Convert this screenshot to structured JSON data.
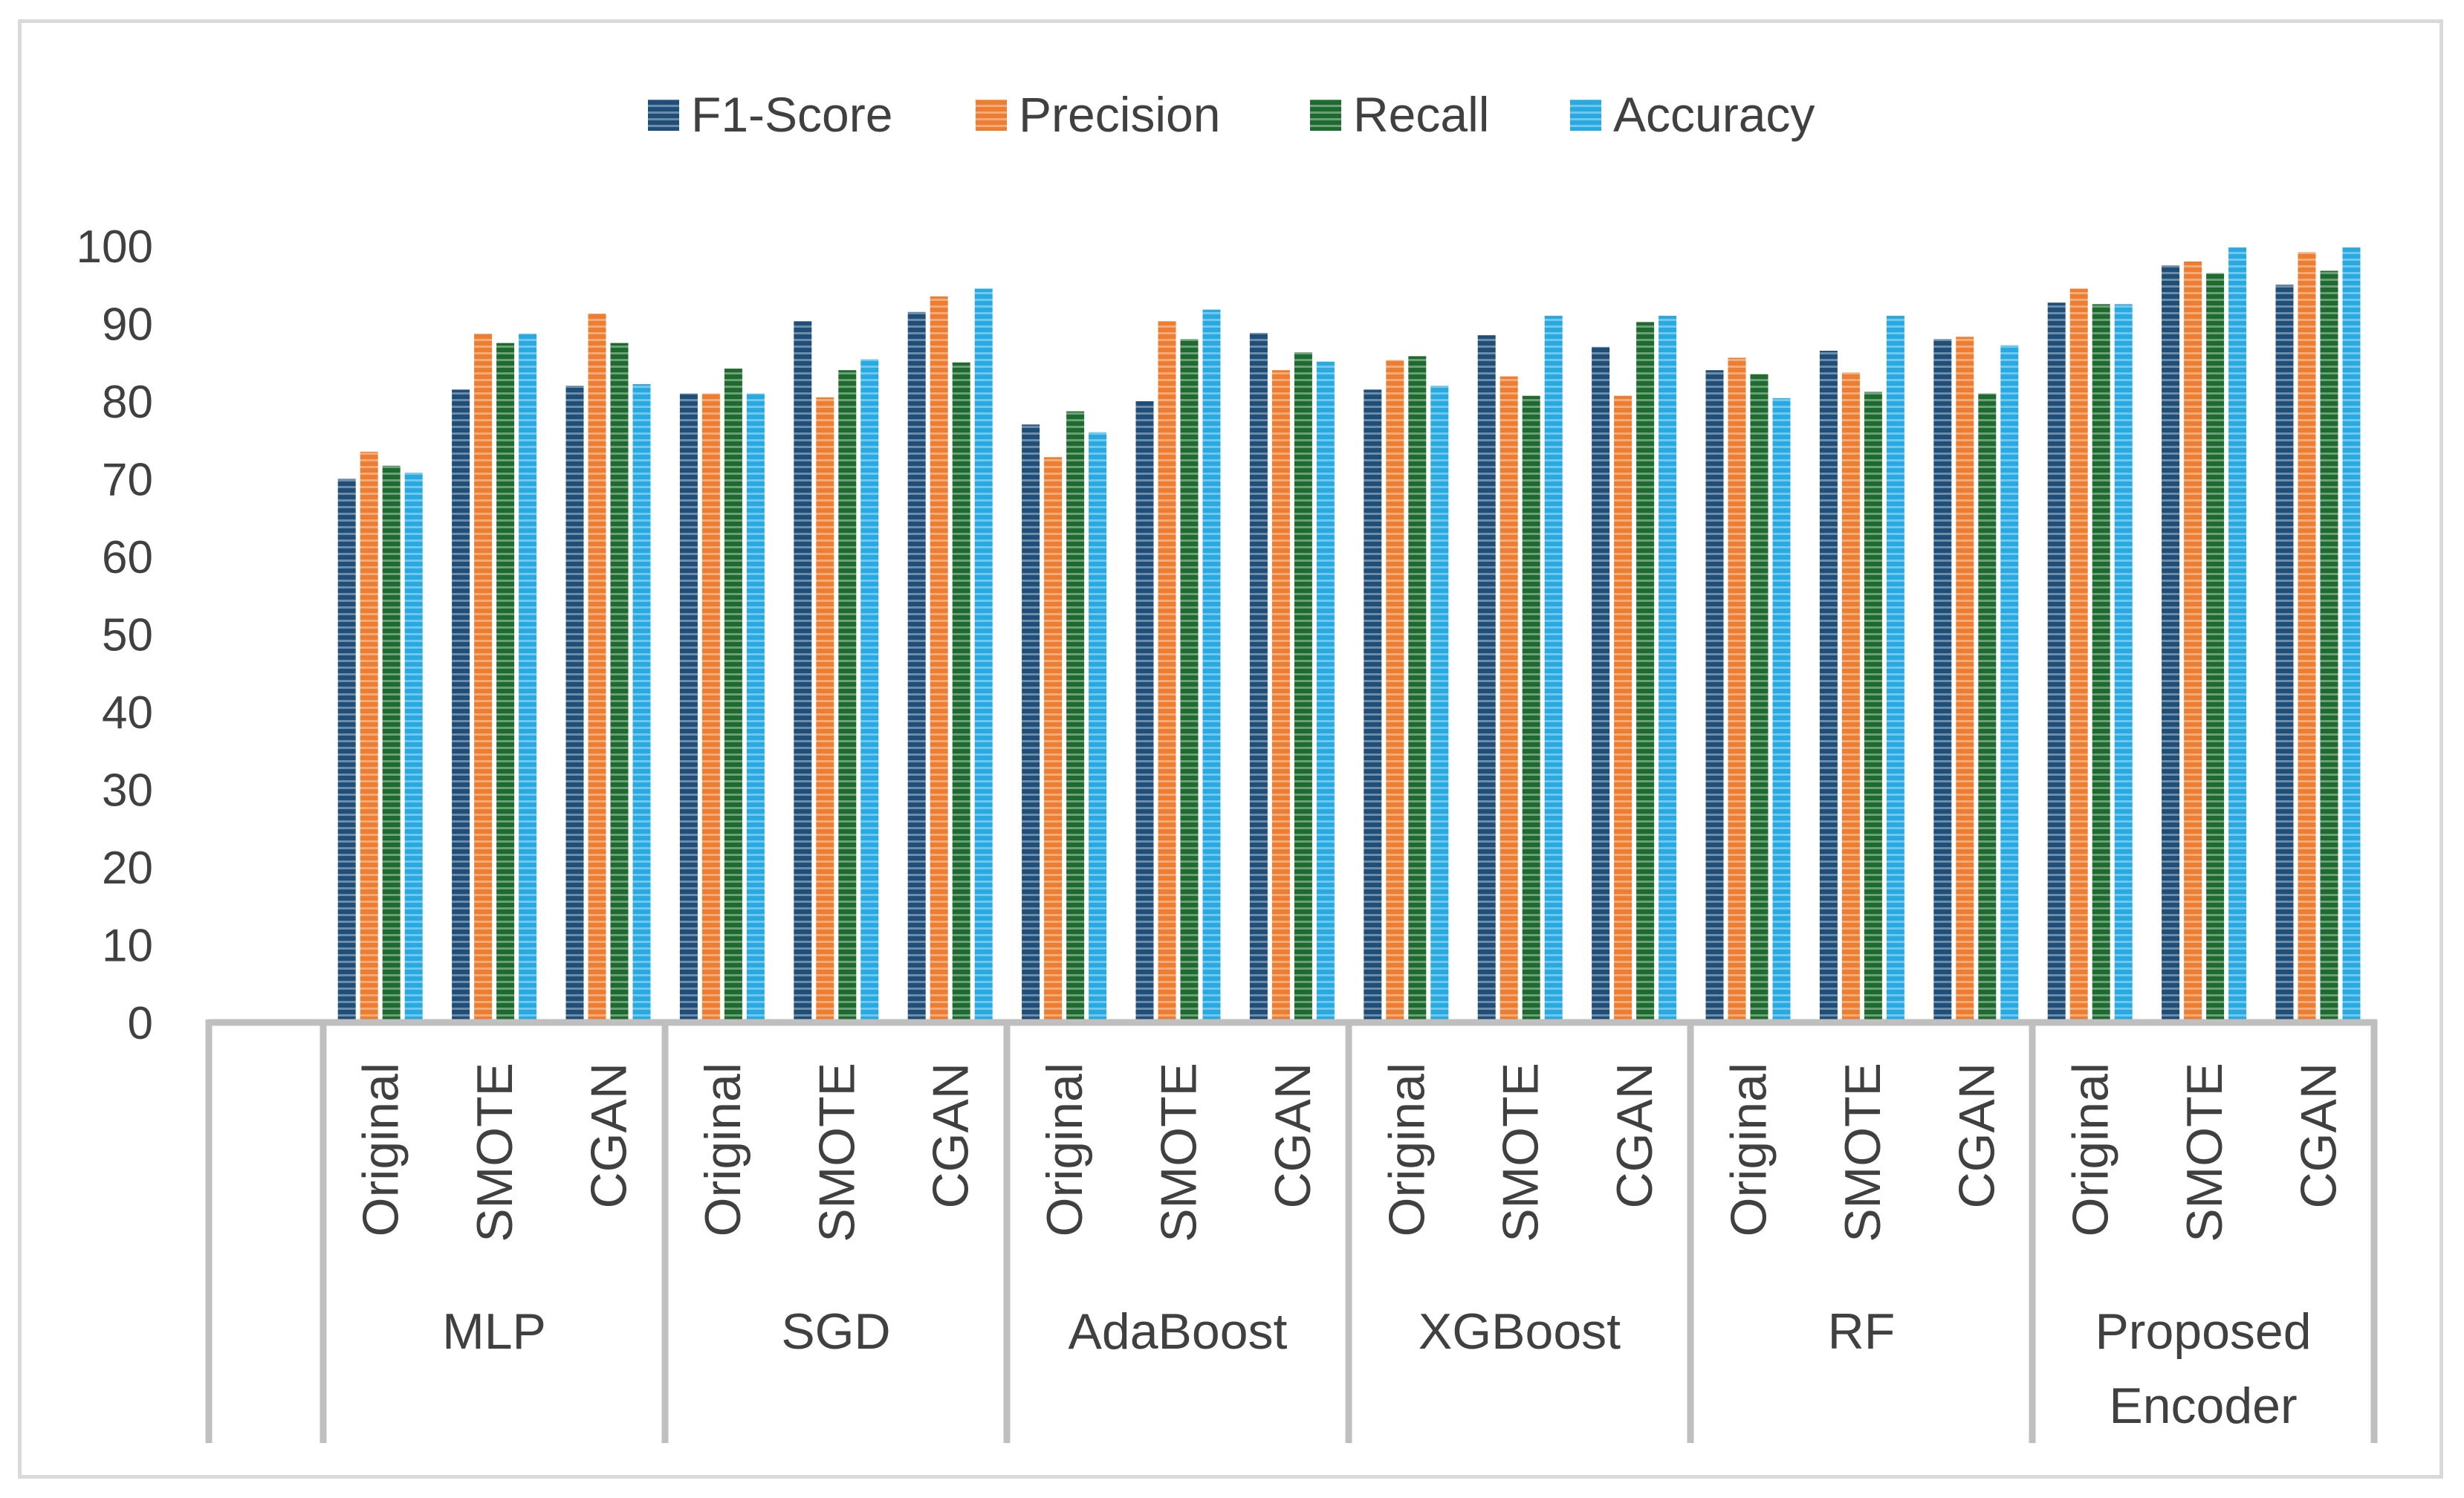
{
  "chart_data": {
    "type": "bar",
    "title": "",
    "xlabel": "",
    "ylabel": "",
    "ylim": [
      0,
      100
    ],
    "yticks": [
      0,
      10,
      20,
      30,
      40,
      50,
      60,
      70,
      80,
      90,
      100
    ],
    "grid": false,
    "legend_position": "top",
    "groups": [
      {
        "name": "MLP",
        "lines": [
          "MLP"
        ]
      },
      {
        "name": "SGD",
        "lines": [
          "SGD"
        ]
      },
      {
        "name": "AdaBoost",
        "lines": [
          "AdaBoost"
        ]
      },
      {
        "name": "XGBoost",
        "lines": [
          "XGBoost"
        ]
      },
      {
        "name": "RF",
        "lines": [
          "RF"
        ]
      },
      {
        "name": "Proposed Encoder",
        "lines": [
          "Proposed",
          "Encoder"
        ]
      }
    ],
    "subcategories": [
      "Original",
      "SMOTE",
      "CGAN"
    ],
    "categories": [
      "MLP Original",
      "MLP SMOTE",
      "MLP CGAN",
      "SGD Original",
      "SGD SMOTE",
      "SGD CGAN",
      "AdaBoost Original",
      "AdaBoost SMOTE",
      "AdaBoost CGAN",
      "XGBoost Original",
      "XGBoost SMOTE",
      "XGBoost CGAN",
      "RF Original",
      "RF SMOTE",
      "RF CGAN",
      "Proposed Encoder Original",
      "Proposed Encoder SMOTE",
      "Proposed Encoder CGAN"
    ],
    "series": [
      {
        "name": "F1-Score",
        "color": "#1f4e79",
        "values": [
          70,
          81.5,
          82,
          81,
          90.3,
          91.5,
          77,
          80,
          88.8,
          81.5,
          88.5,
          87,
          84,
          86.5,
          88,
          92.7,
          97.5,
          95
        ]
      },
      {
        "name": "Precision",
        "color": "#ed7d31",
        "values": [
          73.5,
          88.7,
          91.3,
          81,
          80.5,
          93.5,
          72.8,
          90.3,
          84,
          85.3,
          83.2,
          80.7,
          85.6,
          83.7,
          88.3,
          94.5,
          98,
          99.2
        ]
      },
      {
        "name": "Recall",
        "color": "#1e6b2f",
        "values": [
          71.7,
          87.5,
          87.5,
          84.2,
          84,
          85,
          78.7,
          88,
          86.3,
          85.8,
          80.7,
          90.2,
          83.5,
          81.2,
          81,
          92.5,
          96.5,
          96.8
        ]
      },
      {
        "name": "Accuracy",
        "color": "#27a9e1",
        "values": [
          70.8,
          88.7,
          82.2,
          81,
          85.4,
          94.5,
          76,
          91.8,
          85.1,
          82,
          91,
          91,
          80.4,
          91,
          87.2,
          92.5,
          99.8,
          99.8
        ]
      }
    ]
  }
}
